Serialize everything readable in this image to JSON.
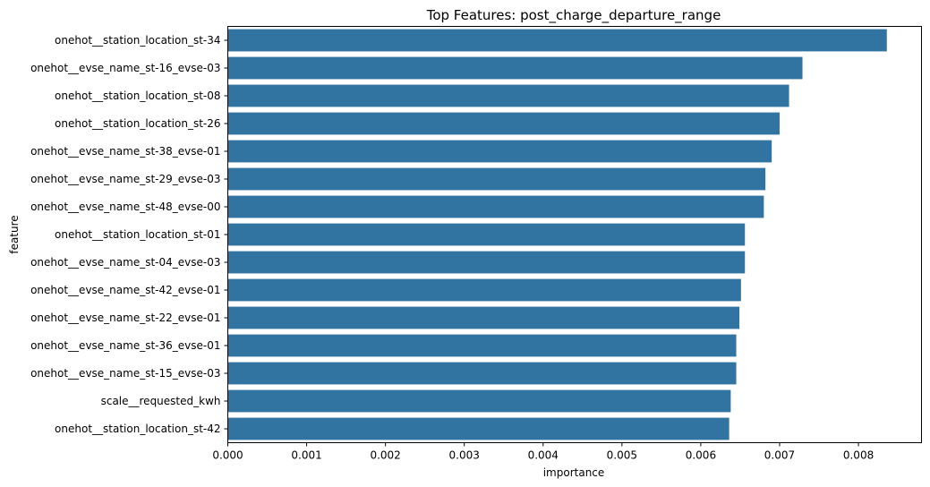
{
  "chart_data": {
    "type": "bar",
    "orientation": "horizontal",
    "title": "Top Features: post_charge_departure_range",
    "xlabel": "importance",
    "ylabel": "feature",
    "categories": [
      "onehot__station_location_st-34",
      "onehot__evse_name_st-16_evse-03",
      "onehot__station_location_st-08",
      "onehot__station_location_st-26",
      "onehot__evse_name_st-38_evse-01",
      "onehot__evse_name_st-29_evse-03",
      "onehot__evse_name_st-48_evse-00",
      "onehot__station_location_st-01",
      "onehot__evse_name_st-04_evse-03",
      "onehot__evse_name_st-42_evse-01",
      "onehot__evse_name_st-22_evse-01",
      "onehot__evse_name_st-36_evse-01",
      "onehot__evse_name_st-15_evse-03",
      "scale__requested_kwh",
      "onehot__station_location_st-42"
    ],
    "values": [
      0.00836,
      0.00729,
      0.00712,
      0.007,
      0.0069,
      0.00682,
      0.0068,
      0.00656,
      0.00656,
      0.00651,
      0.00649,
      0.00645,
      0.00645,
      0.00638,
      0.00636
    ],
    "xlim": [
      0,
      0.0088
    ],
    "xticks": [
      "0.000",
      "0.001",
      "0.002",
      "0.003",
      "0.004",
      "0.005",
      "0.006",
      "0.007",
      "0.008"
    ],
    "grid": false,
    "bar_color": "#3274a1"
  }
}
